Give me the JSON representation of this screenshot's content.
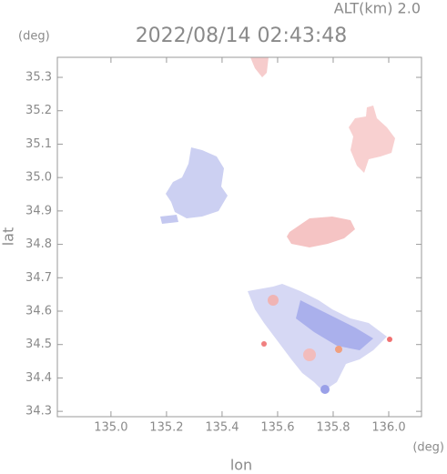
{
  "chart_data": {
    "type": "image",
    "title": "2022/08/14 02:43:48",
    "subtitle": "ALT(km) 2.0",
    "x_label": "lon",
    "y_label": "lat",
    "x_unit": "(deg)",
    "y_unit": "(deg)",
    "xlim": [
      134.807,
      136.118
    ],
    "ylim": [
      34.284,
      35.36
    ],
    "xticks": [
      {
        "value": 135,
        "label": "135.0"
      },
      135.2,
      135.4,
      135.6,
      135.8,
      {
        "value": 136,
        "label": "136.0"
      }
    ],
    "yticks": [
      34.3,
      34.4,
      34.5,
      34.6,
      34.7,
      34.8,
      34.9,
      {
        "value": 35,
        "label": "35.0"
      },
      35.1,
      35.2,
      35.3
    ]
  }
}
